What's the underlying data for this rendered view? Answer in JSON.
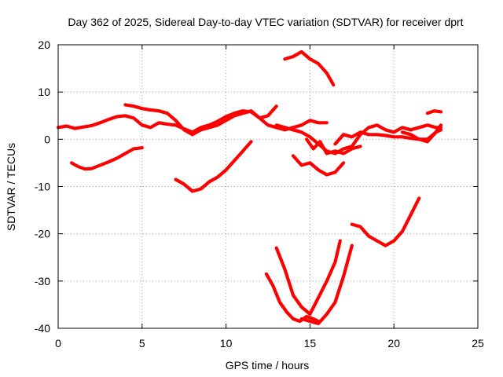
{
  "chart_data": {
    "type": "line",
    "title": "Day 362 of 2025, Sidereal Day-to-day VTEC variation (SDTVAR) for receiver dprt",
    "xlabel": "GPS time / hours",
    "ylabel": "SDTVAR / TECUs",
    "xlim": [
      0,
      25
    ],
    "ylim": [
      -40,
      20
    ],
    "xticks": [
      "0",
      "5",
      "10",
      "15",
      "20",
      "25"
    ],
    "yticks": [
      "-40",
      "-30",
      "-20",
      "-10",
      "0",
      "10",
      "20"
    ],
    "grid": true,
    "legend": "none",
    "series_color": "#ff0000",
    "series": [
      {
        "x": [
          0.0,
          0.5,
          1.0,
          1.5,
          2.0,
          2.5,
          3.0,
          3.5,
          4.0,
          4.5,
          5.0,
          5.5,
          6.0,
          6.5,
          7.0,
          7.5,
          8.0,
          8.5,
          9.0,
          9.5,
          10.0,
          10.5,
          11.0,
          11.5,
          12.0,
          12.5,
          13.0,
          13.5,
          14.0,
          14.5,
          15.0,
          15.5,
          16.0
        ],
        "y": [
          2.5,
          2.8,
          2.3,
          2.6,
          2.9,
          3.5,
          4.2,
          4.8,
          5.0,
          4.5,
          3.0,
          2.5,
          3.5,
          3.2,
          3.0,
          2.2,
          1.5,
          2.5,
          3.0,
          3.8,
          4.8,
          5.5,
          6.0,
          5.8,
          4.5,
          3.0,
          2.5,
          2.0,
          2.5,
          3.0,
          4.0,
          3.5,
          3.5
        ]
      },
      {
        "x": [
          4.0,
          4.5,
          5.0,
          5.5,
          6.0,
          6.5,
          7.0,
          7.5,
          8.0,
          8.5,
          9.0,
          9.5,
          10.0,
          10.5,
          11.0,
          11.5,
          12.0,
          12.5,
          13.0
        ],
        "y": [
          7.3,
          7.0,
          6.5,
          6.2,
          6.0,
          5.5,
          4.0,
          2.0,
          1.0,
          2.0,
          2.5,
          3.0,
          4.0,
          5.0,
          5.5,
          6.0,
          4.5,
          5.0,
          7.0
        ]
      },
      {
        "x": [
          13.0,
          13.5,
          14.0,
          14.5,
          15.0,
          15.5,
          16.0,
          16.5,
          17.0,
          17.5,
          18.0,
          18.5,
          19.0,
          19.5,
          20.0,
          20.5,
          21.0,
          21.5,
          22.0,
          22.5,
          22.8
        ],
        "y": [
          3.0,
          2.5,
          2.0,
          1.5,
          0.5,
          -1.0,
          -2.5,
          -3.0,
          -2.0,
          -1.5,
          1.0,
          2.5,
          3.0,
          2.0,
          1.5,
          2.5,
          2.0,
          2.5,
          3.0,
          2.5,
          2.5
        ]
      },
      {
        "x": [
          16.5,
          17.0,
          17.5,
          18.0,
          18.5,
          19.0,
          19.5,
          20.0,
          20.5,
          21.0,
          21.5,
          22.0,
          22.5,
          22.8
        ],
        "y": [
          -1.0,
          1.0,
          0.5,
          1.5,
          1.0,
          1.0,
          0.8,
          0.5,
          0.5,
          0.2,
          0.0,
          0.0,
          1.5,
          2.0
        ]
      },
      {
        "x": [
          20.5,
          21.0,
          21.5,
          22.0,
          22.5,
          22.8
        ],
        "y": [
          1.5,
          1.0,
          0.0,
          -0.5,
          1.5,
          3.0
        ]
      },
      {
        "x": [
          22.0,
          22.4,
          22.8
        ],
        "y": [
          5.5,
          6.0,
          5.8
        ]
      },
      {
        "x": [
          13.5,
          14.0,
          14.5,
          15.0,
          15.5,
          16.0,
          16.4
        ],
        "y": [
          17.0,
          17.5,
          18.5,
          17.0,
          16.0,
          14.0,
          11.5
        ]
      },
      {
        "x": [
          0.8,
          1.2,
          1.6,
          2.0,
          2.5,
          3.0,
          3.5,
          4.0,
          4.5,
          5.0
        ],
        "y": [
          -5.0,
          -5.8,
          -6.3,
          -6.2,
          -5.5,
          -4.8,
          -4.0,
          -3.0,
          -2.0,
          -1.8
        ]
      },
      {
        "x": [
          7.0,
          7.5,
          8.0,
          8.5,
          9.0,
          9.5,
          10.0,
          10.5,
          11.0,
          11.5
        ],
        "y": [
          -8.5,
          -9.5,
          -11.0,
          -10.5,
          -9.0,
          -8.0,
          -6.5,
          -4.5,
          -2.5,
          -0.5
        ]
      },
      {
        "x": [
          14.0,
          14.5,
          15.0,
          15.5,
          16.0,
          16.5,
          17.0
        ],
        "y": [
          -3.5,
          -5.5,
          -5.0,
          -6.5,
          -7.5,
          -7.0,
          -5.0
        ]
      },
      {
        "x": [
          14.8,
          15.2,
          15.6,
          16.0,
          16.5,
          17.0,
          17.5,
          18.0
        ],
        "y": [
          0.0,
          -2.0,
          -0.5,
          -3.0,
          -2.5,
          -3.0,
          -2.0,
          -1.5
        ]
      },
      {
        "x": [
          12.4,
          12.8,
          13.2,
          13.6,
          14.0,
          14.4,
          14.8,
          15.2,
          15.5
        ],
        "y": [
          -28.5,
          -31.0,
          -34.5,
          -36.5,
          -38.0,
          -38.5,
          -37.5,
          -38.0,
          -38.5
        ]
      },
      {
        "x": [
          13.0,
          13.5,
          14.0,
          14.5,
          15.0,
          15.5,
          16.0,
          16.5,
          16.8
        ],
        "y": [
          -23.0,
          -27.5,
          -33.0,
          -35.5,
          -37.0,
          -33.5,
          -30.0,
          -26.0,
          -21.5
        ]
      },
      {
        "x": [
          14.5,
          15.0,
          15.5,
          16.0,
          16.5,
          17.0,
          17.5
        ],
        "y": [
          -38.0,
          -38.5,
          -39.0,
          -37.0,
          -34.5,
          -29.0,
          -22.5
        ]
      },
      {
        "x": [
          17.5,
          18.0,
          18.5,
          19.0,
          19.5,
          20.0,
          20.5,
          21.0,
          21.5
        ],
        "y": [
          -18.0,
          -18.5,
          -20.5,
          -21.5,
          -22.5,
          -21.5,
          -19.5,
          -16.0,
          -12.5
        ]
      }
    ]
  }
}
